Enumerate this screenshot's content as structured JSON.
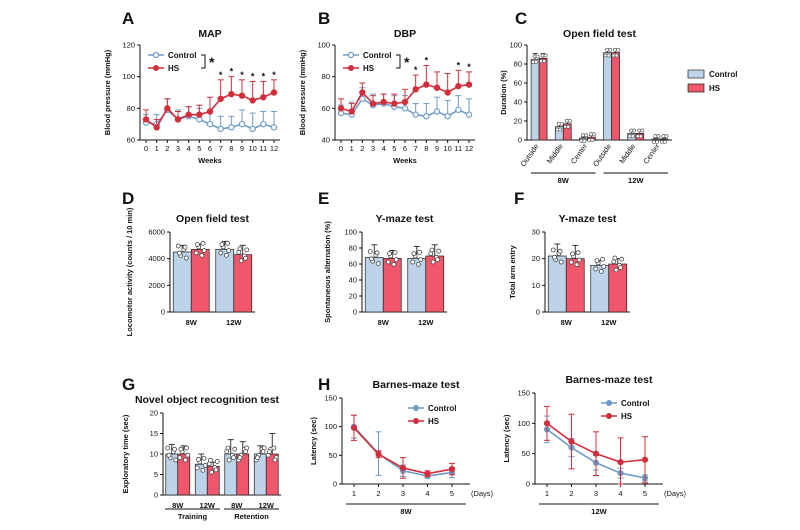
{
  "colors": {
    "control": "#6e9cc9",
    "hs": "#d12f3c",
    "control_fill": "#bcd3e9",
    "hs_fill": "#f0576a",
    "axis": "#111111"
  },
  "chart_data": [
    {
      "id": "A",
      "label": "A",
      "type": "line",
      "title": "MAP",
      "xlabel": "Weeks",
      "ylabel": "Blood pressure (mmHg)",
      "ylim": [
        60,
        120
      ],
      "yticks": [
        "60",
        "80",
        "100",
        "120"
      ],
      "categories": [
        "0",
        "1",
        "2",
        "3",
        "4",
        "5",
        "6",
        "7",
        "8",
        "9",
        "10",
        "11",
        "12"
      ],
      "series": [
        {
          "name": "Control",
          "values": [
            71,
            70,
            79,
            73,
            75,
            73,
            70,
            67,
            68,
            70,
            67,
            70,
            68
          ],
          "errors": [
            5,
            6,
            7,
            6,
            6,
            7,
            8,
            8,
            7,
            9,
            10,
            8,
            10
          ]
        },
        {
          "name": "HS",
          "values": [
            73,
            68,
            80,
            73,
            76,
            76,
            78,
            86,
            89,
            88,
            85,
            87,
            90
          ],
          "errors": [
            6,
            5,
            6,
            5,
            5,
            6,
            9,
            12,
            11,
            10,
            12,
            10,
            8
          ]
        }
      ],
      "significant": [
        7,
        8,
        9,
        10,
        11,
        12
      ],
      "legend": {
        "control": "Control",
        "hs": "HS",
        "bracket_star": "*"
      },
      "sig_marker": "*"
    },
    {
      "id": "B",
      "label": "B",
      "type": "line",
      "title": "DBP",
      "xlabel": "Weeks",
      "ylabel": "Blood pressure (mmHg)",
      "ylim": [
        40,
        100
      ],
      "yticks": [
        "40",
        "60",
        "80",
        "100"
      ],
      "categories": [
        "0",
        "1",
        "2",
        "3",
        "4",
        "5",
        "6",
        "7",
        "8",
        "9",
        "10",
        "11",
        "12"
      ],
      "series": [
        {
          "name": "Control",
          "values": [
            57,
            56,
            66,
            62,
            63,
            61,
            60,
            56,
            55,
            58,
            55,
            59,
            56
          ],
          "errors": [
            5,
            8,
            7,
            7,
            6,
            7,
            8,
            7,
            8,
            9,
            10,
            9,
            10
          ]
        },
        {
          "name": "HS",
          "values": [
            60,
            58,
            70,
            63,
            64,
            63,
            64,
            72,
            75,
            73,
            70,
            74,
            75
          ],
          "errors": [
            6,
            5,
            6,
            5,
            5,
            6,
            8,
            9,
            12,
            10,
            12,
            10,
            8
          ]
        }
      ],
      "significant": [
        7,
        8,
        11,
        12
      ],
      "legend": {
        "control": "Control",
        "hs": "HS",
        "bracket_star": "*"
      },
      "sig_marker": "*"
    },
    {
      "id": "C",
      "label": "C",
      "type": "bar",
      "title": "Open field test",
      "ylabel": "Duration (%)",
      "ylim": [
        0,
        100
      ],
      "yticks": [
        "0",
        "20",
        "40",
        "60",
        "80",
        "100"
      ],
      "categories": [
        "Outside",
        "Middle",
        "Center",
        "Outside",
        "Middle",
        "Center"
      ],
      "groups": [
        "8W",
        "12W"
      ],
      "series": [
        {
          "name": "Control",
          "values": [
            85,
            14,
            2,
            92,
            7,
            1
          ],
          "errors": [
            6,
            4,
            1,
            3,
            3,
            1
          ]
        },
        {
          "name": "HS",
          "values": [
            86,
            17,
            3,
            92,
            7,
            1
          ],
          "errors": [
            5,
            4,
            2,
            3,
            3,
            1
          ]
        }
      ],
      "legend": {
        "control": "Control",
        "hs": "HS"
      }
    },
    {
      "id": "D",
      "label": "D",
      "type": "bar",
      "title": "Open field test",
      "ylabel": "Locomotor activity (counts / 10 min)",
      "ylim": [
        0,
        6000
      ],
      "yticks": [
        "0",
        "2000",
        "4000",
        "6000"
      ],
      "categories": [
        "8W",
        "12W"
      ],
      "series": [
        {
          "name": "Control",
          "values": [
            4500,
            4700
          ],
          "errors": [
            500,
            600
          ]
        },
        {
          "name": "HS",
          "values": [
            4700,
            4300
          ],
          "errors": [
            400,
            700
          ]
        }
      ]
    },
    {
      "id": "E",
      "label": "E",
      "type": "bar",
      "title": "Y-maze test",
      "ylabel": "Spontaneous alternation (%)",
      "ylim": [
        0,
        100
      ],
      "yticks": [
        "0",
        "20",
        "40",
        "60",
        "80",
        "100"
      ],
      "categories": [
        "8W",
        "12W"
      ],
      "series": [
        {
          "name": "Control",
          "values": [
            68,
            67
          ],
          "errors": [
            16,
            15
          ]
        },
        {
          "name": "HS",
          "values": [
            67,
            70
          ],
          "errors": [
            10,
            14
          ]
        }
      ]
    },
    {
      "id": "F",
      "label": "F",
      "type": "bar",
      "title": "Y-maze test",
      "ylabel": "Total arm entry",
      "ylim": [
        0,
        30
      ],
      "yticks": [
        "0",
        "10",
        "20",
        "30"
      ],
      "categories": [
        "8W",
        "12W"
      ],
      "series": [
        {
          "name": "Control",
          "values": [
            21,
            17.5
          ],
          "errors": [
            4.5,
            1.8
          ]
        },
        {
          "name": "HS",
          "values": [
            20,
            18
          ],
          "errors": [
            5,
            2
          ]
        }
      ]
    },
    {
      "id": "G",
      "label": "G",
      "type": "bar",
      "title": "Novel object recognition test",
      "ylabel": "Exploratory time (sec)",
      "ylim": [
        0,
        20
      ],
      "yticks": [
        "0",
        "5",
        "10",
        "15",
        "20"
      ],
      "categories": [
        "8W",
        "12W",
        "8W",
        "12W"
      ],
      "groups": [
        "Training",
        "Retention"
      ],
      "series": [
        {
          "name": "Control",
          "values": [
            10,
            7.5,
            10,
            10
          ],
          "errors": [
            2.3,
            2.5,
            3.5,
            2
          ]
        },
        {
          "name": "HS",
          "values": [
            10,
            7,
            10,
            10
          ],
          "errors": [
            2,
            1,
            3,
            5
          ]
        }
      ]
    },
    {
      "id": "H1",
      "label": "H",
      "type": "line",
      "title": "Barnes-maze test",
      "xlabel": "8W",
      "ylabel": "Latency (sec)",
      "xunit": "(Days)",
      "ylim": [
        0,
        150
      ],
      "yticks": [
        "0",
        "50",
        "100",
        "150"
      ],
      "categories": [
        "1",
        "2",
        "3",
        "4",
        "5"
      ],
      "series": [
        {
          "name": "Control",
          "values": [
            100,
            53,
            23,
            14,
            20
          ],
          "errors": [
            20,
            38,
            10,
            4,
            9
          ]
        },
        {
          "name": "HS",
          "values": [
            98,
            52,
            28,
            18,
            26
          ],
          "errors": [
            22,
            6,
            18,
            5,
            10
          ]
        }
      ],
      "legend": {
        "control": "Control",
        "hs": "HS"
      }
    },
    {
      "id": "H2",
      "label": "",
      "type": "line",
      "title": "Barnes-maze test",
      "xlabel": "12W",
      "ylabel": "Latency (sec)",
      "xunit": "(Days)",
      "ylim": [
        0,
        150
      ],
      "yticks": [
        "0",
        "50",
        "100",
        "150"
      ],
      "categories": [
        "1",
        "2",
        "3",
        "4",
        "5"
      ],
      "series": [
        {
          "name": "Control",
          "values": [
            90,
            60,
            35,
            18,
            10
          ],
          "errors": [
            22,
            15,
            12,
            8,
            5
          ]
        },
        {
          "name": "HS",
          "values": [
            100,
            70,
            50,
            36,
            40
          ],
          "errors": [
            28,
            45,
            36,
            40,
            38
          ]
        }
      ],
      "legend": {
        "control": "Control",
        "hs": "HS"
      }
    }
  ]
}
